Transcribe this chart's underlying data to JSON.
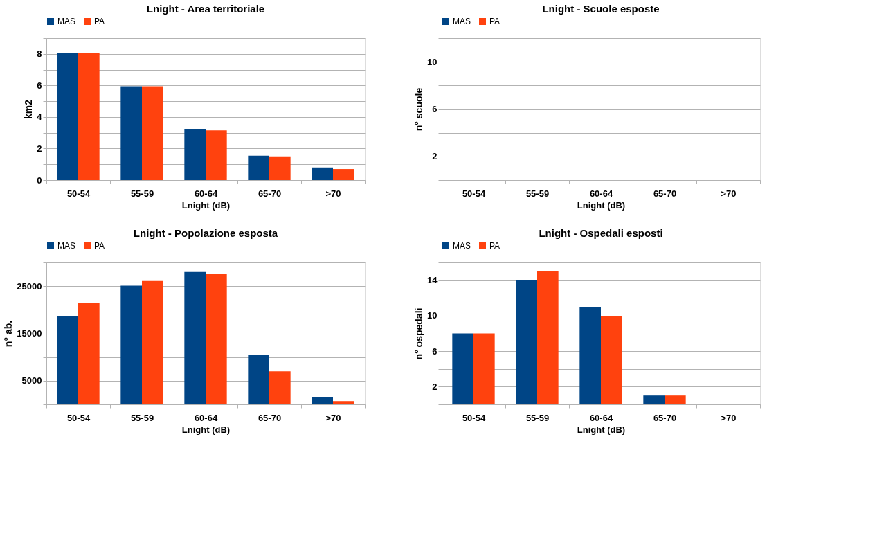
{
  "chart_data": [
    {
      "type": "bar",
      "title": "Lnight - Area territoriale",
      "xlabel": "Lnight (dB)",
      "ylabel": "km2",
      "categories": [
        "50-54",
        "55-59",
        "60-64",
        "65-70",
        ">70"
      ],
      "series": [
        {
          "name": "MAS",
          "color": "#004586",
          "values": [
            8.05,
            5.95,
            3.2,
            1.55,
            0.8
          ]
        },
        {
          "name": "PA",
          "color": "#ff420e",
          "values": [
            8.05,
            5.95,
            3.15,
            1.5,
            0.7
          ]
        }
      ],
      "ylim": [
        0,
        9
      ],
      "yticks": [
        0,
        {
          "value": 1,
          "label": null
        },
        2,
        {
          "value": 3,
          "label": null
        },
        4,
        {
          "value": 5,
          "label": null
        },
        6,
        {
          "value": 7,
          "label": null
        },
        8,
        {
          "value": 9,
          "label": null
        }
      ],
      "grid": "y",
      "legend": "top"
    },
    {
      "type": "bar",
      "title": "Lnight - Scuole esposte",
      "xlabel": "Lnight (dB)",
      "ylabel": "n° scuole",
      "categories": [
        "50-54",
        "55-59",
        "60-64",
        "65-70",
        ">70"
      ],
      "series": [
        {
          "name": "MAS",
          "color": "#004586",
          "values": [
            0,
            0,
            0,
            0,
            0
          ]
        },
        {
          "name": "PA",
          "color": "#ff420e",
          "values": [
            0,
            0,
            0,
            0,
            0
          ]
        }
      ],
      "ylim": [
        0,
        12
      ],
      "yticks": [
        {
          "value": 0,
          "label": null
        },
        2,
        {
          "value": 4,
          "label": null
        },
        6,
        {
          "value": 8,
          "label": null
        },
        10,
        {
          "value": 12,
          "label": null
        }
      ],
      "grid": "y",
      "legend": "top"
    },
    {
      "type": "bar",
      "title": "Lnight - Popolazione esposta",
      "xlabel": "Lnight (dB)",
      "ylabel": "n° ab.",
      "categories": [
        "50-54",
        "55-59",
        "60-64",
        "65-70",
        ">70"
      ],
      "series": [
        {
          "name": "MAS",
          "color": "#004586",
          "values": [
            18700,
            25100,
            28000,
            10400,
            1600
          ]
        },
        {
          "name": "PA",
          "color": "#ff420e",
          "values": [
            21400,
            26100,
            27500,
            7000,
            700
          ]
        }
      ],
      "ylim": [
        0,
        30000
      ],
      "yticks": [
        {
          "value": 0,
          "label": null
        },
        5000,
        {
          "value": 10000,
          "label": null
        },
        15000,
        {
          "value": 20000,
          "label": null
        },
        25000,
        {
          "value": 30000,
          "label": null
        }
      ],
      "grid": "y",
      "legend": "top"
    },
    {
      "type": "bar",
      "title": "Lnight - Ospedali esposti",
      "xlabel": "Lnight (dB)",
      "ylabel": "n° ospedali",
      "categories": [
        "50-54",
        "55-59",
        "60-64",
        "65-70",
        ">70"
      ],
      "series": [
        {
          "name": "MAS",
          "color": "#004586",
          "values": [
            8,
            14,
            11,
            1,
            0
          ]
        },
        {
          "name": "PA",
          "color": "#ff420e",
          "values": [
            8,
            15,
            10,
            1,
            0
          ]
        }
      ],
      "ylim": [
        0,
        16
      ],
      "yticks": [
        {
          "value": 0,
          "label": null
        },
        2,
        {
          "value": 4,
          "label": null
        },
        6,
        {
          "value": 8,
          "label": null
        },
        10,
        {
          "value": 12,
          "label": null
        },
        14,
        {
          "value": 16,
          "label": null
        }
      ],
      "grid": "y",
      "legend": "top"
    }
  ]
}
